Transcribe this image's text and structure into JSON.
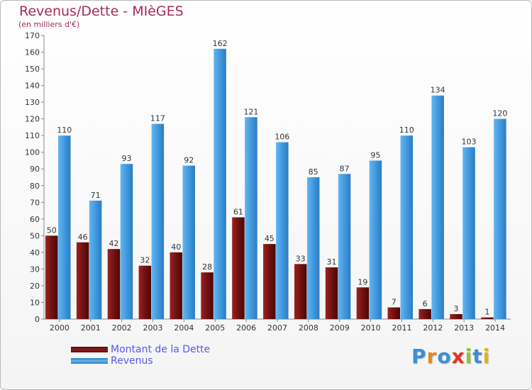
{
  "title": "Revenus/Dette - MIèGES",
  "subtitle": "(en milliers d'€)",
  "colors": {
    "dette": "#7a1414",
    "revenus": "#4a9fe0",
    "title": "#a52a5a",
    "legend_text": "#5757f0"
  },
  "legend": [
    {
      "label": "Montant de la Dette",
      "color": "#7a1414"
    },
    {
      "label": "Revenus",
      "color": "#4a9fe0"
    }
  ],
  "logo": {
    "text": "Proxiti"
  },
  "chart_data": {
    "type": "bar",
    "title": "Revenus/Dette - MIèGES",
    "subtitle": "(en milliers d'€)",
    "categories": [
      "2000",
      "2001",
      "2002",
      "2003",
      "2004",
      "2005",
      "2006",
      "2007",
      "2008",
      "2009",
      "2010",
      "2011",
      "2012",
      "2013",
      "2014"
    ],
    "series": [
      {
        "name": "Montant de la Dette",
        "values": [
          50,
          46,
          42,
          32,
          40,
          28,
          61,
          45,
          33,
          31,
          19,
          7,
          6,
          3,
          1
        ]
      },
      {
        "name": "Revenus",
        "values": [
          110,
          71,
          93,
          117,
          92,
          162,
          121,
          106,
          85,
          87,
          95,
          110,
          134,
          103,
          120
        ]
      }
    ],
    "ylim": [
      0,
      170
    ],
    "yticks": [
      0,
      10,
      20,
      30,
      40,
      50,
      60,
      70,
      80,
      90,
      100,
      110,
      120,
      130,
      140,
      150,
      160,
      170
    ],
    "grid": false,
    "legend_position": "bottom-left",
    "data_labels": true
  }
}
